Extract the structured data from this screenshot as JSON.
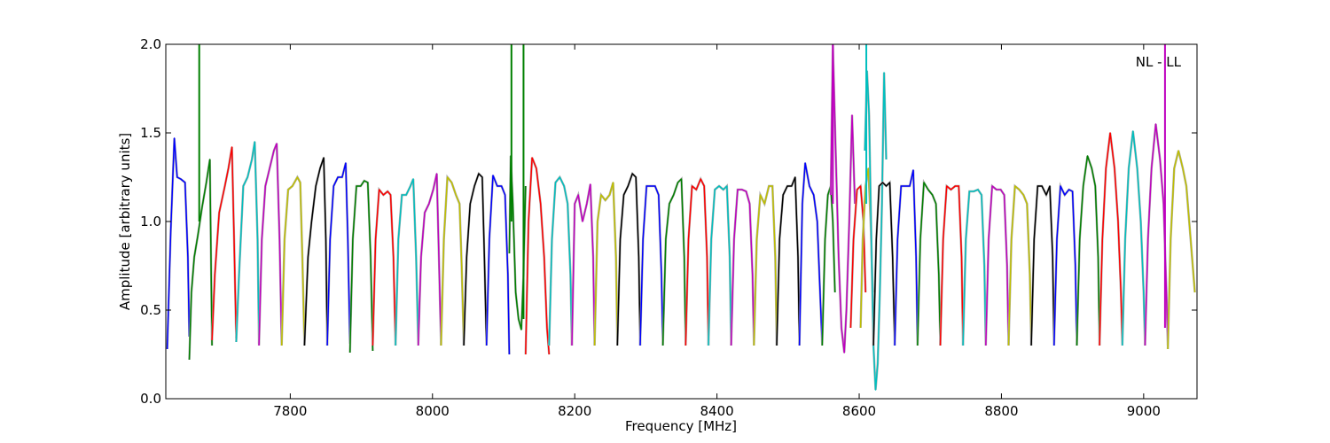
{
  "chart_data": {
    "type": "line",
    "annotation": "NL - LL",
    "xlabel": "Frequency [MHz]",
    "ylabel": "Amplitude [arbitrary units]",
    "xlim": [
      7625,
      9075
    ],
    "ylim": [
      0.0,
      2.0
    ],
    "xticks": [
      7800,
      8000,
      8200,
      8400,
      8600,
      8800,
      9000
    ],
    "xtick_labels": [
      "7800",
      "8000",
      "8200",
      "8400",
      "8600",
      "8800",
      "9000"
    ],
    "yticks": [
      0.0,
      0.5,
      1.0,
      1.5,
      2.0
    ],
    "ytick_labels": [
      "0.0",
      "0.5",
      "1.0",
      "1.5",
      "2.0"
    ],
    "grid": false,
    "color_cycle": [
      "#0000ff",
      "#008000",
      "#ff0000",
      "#00bfbf",
      "#bf00bf",
      "#bfbf00",
      "#000000"
    ],
    "series": [
      {
        "color": "#0000ff",
        "x": [
          7627,
          7632,
          7637,
          7641,
          7646,
          7652,
          7656,
          7658
        ],
        "y": [
          0.28,
          0.95,
          1.47,
          1.25,
          1.24,
          1.22,
          0.8,
          0.35
        ]
      },
      {
        "color": "#008000",
        "x": [
          7658,
          7661,
          7665,
          7670,
          7676,
          7682,
          7687,
          7690
        ],
        "y": [
          0.22,
          0.6,
          0.8,
          0.92,
          1.08,
          1.22,
          1.35,
          0.3
        ]
      },
      {
        "color": "#ff0000",
        "x": [
          7690,
          7694,
          7700,
          7708,
          7713,
          7718,
          7721,
          7724
        ],
        "y": [
          0.33,
          0.7,
          1.05,
          1.2,
          1.3,
          1.42,
          0.9,
          0.34
        ]
      },
      {
        "color": "#00bfbf",
        "x": [
          7724,
          7728,
          7734,
          7740,
          7746,
          7750,
          7754,
          7756
        ],
        "y": [
          0.32,
          0.7,
          1.2,
          1.25,
          1.35,
          1.45,
          0.9,
          0.31
        ]
      },
      {
        "color": "#bf00bf",
        "x": [
          7756,
          7760,
          7765,
          7771,
          7777,
          7781,
          7785,
          7788
        ],
        "y": [
          0.3,
          0.9,
          1.2,
          1.3,
          1.4,
          1.44,
          0.9,
          0.3
        ]
      },
      {
        "color": "#bfbf00",
        "x": [
          7788,
          7792,
          7797,
          7803,
          7810,
          7814,
          7817,
          7820
        ],
        "y": [
          0.3,
          0.9,
          1.18,
          1.2,
          1.25,
          1.22,
          0.8,
          0.3
        ]
      },
      {
        "color": "#000000",
        "x": [
          7820,
          7825,
          7830,
          7836,
          7842,
          7847,
          7850,
          7852
        ],
        "y": [
          0.3,
          0.8,
          1.0,
          1.2,
          1.3,
          1.36,
          0.9,
          0.3
        ]
      },
      {
        "color": "#0000ff",
        "x": [
          7852,
          7856,
          7861,
          7867,
          7873,
          7878,
          7881,
          7884
        ],
        "y": [
          0.3,
          0.9,
          1.2,
          1.25,
          1.25,
          1.33,
          0.9,
          0.31
        ]
      },
      {
        "color": "#008000",
        "x": [
          7884,
          7888,
          7893,
          7899,
          7904,
          7909,
          7913,
          7916
        ],
        "y": [
          0.26,
          0.9,
          1.2,
          1.2,
          1.23,
          1.22,
          0.8,
          0.27
        ]
      },
      {
        "color": "#ff0000",
        "x": [
          7916,
          7920,
          7925,
          7931,
          7937,
          7941,
          7945,
          7948
        ],
        "y": [
          0.3,
          0.9,
          1.18,
          1.15,
          1.17,
          1.15,
          0.8,
          0.3
        ]
      },
      {
        "color": "#00bfbf",
        "x": [
          7948,
          7952,
          7957,
          7963,
          7969,
          7973,
          7977,
          7980
        ],
        "y": [
          0.3,
          0.9,
          1.15,
          1.15,
          1.2,
          1.24,
          0.8,
          0.31
        ]
      },
      {
        "color": "#bf00bf",
        "x": [
          7980,
          7984,
          7989,
          7995,
          8001,
          8006,
          8009,
          8012
        ],
        "y": [
          0.3,
          0.8,
          1.05,
          1.1,
          1.18,
          1.27,
          0.8,
          0.3
        ]
      },
      {
        "color": "#bfbf00",
        "x": [
          8012,
          8016,
          8021,
          8027,
          8033,
          8038,
          8041,
          8044
        ],
        "y": [
          0.3,
          0.9,
          1.25,
          1.22,
          1.15,
          1.1,
          0.75,
          0.3
        ]
      },
      {
        "color": "#000000",
        "x": [
          8044,
          8048,
          8053,
          8059,
          8065,
          8070,
          8073,
          8076
        ],
        "y": [
          0.3,
          0.8,
          1.1,
          1.2,
          1.27,
          1.25,
          0.8,
          0.3
        ]
      },
      {
        "color": "#0000ff",
        "x": [
          8076,
          8080,
          8085,
          8091,
          8097,
          8102,
          8106,
          8108
        ],
        "y": [
          0.3,
          0.9,
          1.26,
          1.2,
          1.2,
          1.15,
          0.7,
          0.25
        ]
      },
      {
        "color": "#008000",
        "x": [
          8108,
          8110,
          8113,
          8117,
          8121,
          8125,
          8128,
          8131
        ],
        "y": [
          0.82,
          1.37,
          1.1,
          0.6,
          0.45,
          0.39,
          0.7,
          1.2
        ]
      },
      {
        "color": "#ff0000",
        "x": [
          8131,
          8135,
          8140,
          8146,
          8152,
          8157,
          8161,
          8164
        ],
        "y": [
          0.25,
          1.0,
          1.36,
          1.3,
          1.1,
          0.8,
          0.4,
          0.25
        ]
      },
      {
        "color": "#00bfbf",
        "x": [
          8164,
          8168,
          8173,
          8179,
          8185,
          8190,
          8194,
          8196
        ],
        "y": [
          0.3,
          0.9,
          1.22,
          1.25,
          1.2,
          1.1,
          0.7,
          0.3
        ]
      },
      {
        "color": "#bf00bf",
        "x": [
          8196,
          8200,
          8205,
          8211,
          8217,
          8222,
          8226,
          8228
        ],
        "y": [
          0.3,
          1.1,
          1.15,
          1.0,
          1.1,
          1.21,
          0.8,
          0.3
        ]
      },
      {
        "color": "#bfbf00",
        "x": [
          8228,
          8232,
          8237,
          8243,
          8249,
          8254,
          8258,
          8260
        ],
        "y": [
          0.3,
          1.0,
          1.15,
          1.12,
          1.15,
          1.22,
          0.8,
          0.3
        ]
      },
      {
        "color": "#000000",
        "x": [
          8260,
          8264,
          8269,
          8275,
          8281,
          8286,
          8290,
          8292
        ],
        "y": [
          0.3,
          0.9,
          1.15,
          1.2,
          1.27,
          1.25,
          0.8,
          0.3
        ]
      },
      {
        "color": "#0000ff",
        "x": [
          8292,
          8296,
          8301,
          8307,
          8313,
          8318,
          8322,
          8324
        ],
        "y": [
          0.3,
          0.9,
          1.2,
          1.2,
          1.2,
          1.15,
          0.7,
          0.3
        ]
      },
      {
        "color": "#008000",
        "x": [
          8324,
          8328,
          8333,
          8339,
          8345,
          8350,
          8354,
          8356
        ],
        "y": [
          0.3,
          0.9,
          1.1,
          1.15,
          1.22,
          1.24,
          0.8,
          0.3
        ]
      },
      {
        "color": "#ff0000",
        "x": [
          8356,
          8360,
          8365,
          8371,
          8377,
          8382,
          8386,
          8388
        ],
        "y": [
          0.3,
          0.9,
          1.2,
          1.18,
          1.24,
          1.2,
          0.8,
          0.3
        ]
      },
      {
        "color": "#00bfbf",
        "x": [
          8388,
          8392,
          8397,
          8403,
          8409,
          8414,
          8418,
          8420
        ],
        "y": [
          0.3,
          0.9,
          1.18,
          1.2,
          1.18,
          1.2,
          0.8,
          0.3
        ]
      },
      {
        "color": "#bf00bf",
        "x": [
          8420,
          8424,
          8429,
          8435,
          8441,
          8446,
          8450,
          8452
        ],
        "y": [
          0.3,
          0.9,
          1.18,
          1.18,
          1.17,
          1.1,
          0.7,
          0.3
        ]
      },
      {
        "color": "#bfbf00",
        "x": [
          8452,
          8456,
          8461,
          8467,
          8473,
          8478,
          8482,
          8484
        ],
        "y": [
          0.3,
          0.9,
          1.15,
          1.1,
          1.2,
          1.2,
          0.8,
          0.3
        ]
      },
      {
        "color": "#000000",
        "x": [
          8484,
          8488,
          8493,
          8499,
          8505,
          8510,
          8514,
          8516
        ],
        "y": [
          0.3,
          0.9,
          1.15,
          1.2,
          1.2,
          1.25,
          0.8,
          0.3
        ]
      },
      {
        "color": "#0000ff",
        "x": [
          8516,
          8520,
          8524,
          8530,
          8536,
          8541,
          8545,
          8548
        ],
        "y": [
          0.3,
          1.1,
          1.33,
          1.2,
          1.15,
          1.0,
          0.6,
          0.3
        ]
      },
      {
        "color": "#008000",
        "x": [
          8548,
          8552,
          8556,
          8560,
          8563,
          8566
        ],
        "y": [
          0.3,
          0.9,
          1.15,
          1.2,
          1.0,
          0.6
        ]
      },
      {
        "color": "#bf00bf",
        "x": [
          8560,
          8563,
          8567,
          8571,
          8575,
          8579,
          8582,
          8586,
          8590,
          8594
        ],
        "y": [
          1.15,
          2.0,
          1.4,
          0.8,
          0.4,
          0.26,
          0.5,
          1.0,
          1.6,
          1.1
        ]
      },
      {
        "color": "#ff0000",
        "x": [
          8588,
          8592,
          8597,
          8602,
          8606,
          8609
        ],
        "y": [
          0.4,
          0.9,
          1.18,
          1.2,
          1.0,
          0.6
        ]
      },
      {
        "color": "#bfbf00",
        "x": [
          8602,
          8605,
          8609,
          8613,
          8616,
          8619
        ],
        "y": [
          0.4,
          0.9,
          1.2,
          1.3,
          1.0,
          0.6
        ]
      },
      {
        "color": "#00bfbf",
        "x": [
          8608,
          8611,
          8614,
          8617,
          8620,
          8623,
          8626,
          8629,
          8632,
          8635,
          8638
        ],
        "y": [
          1.4,
          1.85,
          1.6,
          0.9,
          0.3,
          0.05,
          0.2,
          0.6,
          1.1,
          1.84,
          1.35
        ]
      },
      {
        "color": "#000000",
        "x": [
          8620,
          8624,
          8628,
          8633,
          8638,
          8643,
          8647,
          8650
        ],
        "y": [
          0.3,
          0.9,
          1.2,
          1.22,
          1.2,
          1.22,
          0.8,
          0.3
        ]
      },
      {
        "color": "#0000ff",
        "x": [
          8650,
          8654,
          8659,
          8665,
          8671,
          8676,
          8680,
          8682
        ],
        "y": [
          0.3,
          0.9,
          1.2,
          1.2,
          1.2,
          1.29,
          0.8,
          0.3
        ]
      },
      {
        "color": "#008000",
        "x": [
          8682,
          8686,
          8691,
          8697,
          8703,
          8708,
          8712,
          8714
        ],
        "y": [
          0.3,
          0.9,
          1.22,
          1.18,
          1.15,
          1.1,
          0.7,
          0.3
        ]
      },
      {
        "color": "#ff0000",
        "x": [
          8714,
          8718,
          8723,
          8729,
          8735,
          8740,
          8744,
          8746
        ],
        "y": [
          0.3,
          0.9,
          1.2,
          1.18,
          1.2,
          1.2,
          0.8,
          0.3
        ]
      },
      {
        "color": "#00bfbf",
        "x": [
          8746,
          8750,
          8755,
          8761,
          8767,
          8772,
          8776,
          8778
        ],
        "y": [
          0.3,
          0.9,
          1.17,
          1.17,
          1.18,
          1.15,
          0.75,
          0.3
        ]
      },
      {
        "color": "#bf00bf",
        "x": [
          8778,
          8782,
          8787,
          8793,
          8799,
          8804,
          8808,
          8810
        ],
        "y": [
          0.3,
          0.9,
          1.2,
          1.18,
          1.18,
          1.15,
          0.75,
          0.3
        ]
      },
      {
        "color": "#bfbf00",
        "x": [
          8810,
          8814,
          8819,
          8825,
          8831,
          8836,
          8840,
          8842
        ],
        "y": [
          0.3,
          0.9,
          1.2,
          1.18,
          1.15,
          1.1,
          0.7,
          0.3
        ]
      },
      {
        "color": "#000000",
        "x": [
          8842,
          8846,
          8851,
          8857,
          8863,
          8868,
          8872,
          8874
        ],
        "y": [
          0.3,
          0.9,
          1.2,
          1.2,
          1.15,
          1.2,
          0.8,
          0.3
        ]
      },
      {
        "color": "#0000ff",
        "x": [
          8874,
          8878,
          8883,
          8889,
          8895,
          8900,
          8904,
          8906
        ],
        "y": [
          0.3,
          0.9,
          1.2,
          1.15,
          1.18,
          1.17,
          0.75,
          0.3
        ]
      },
      {
        "color": "#008000",
        "x": [
          8906,
          8910,
          8915,
          8921,
          8927,
          8932,
          8936,
          8938
        ],
        "y": [
          0.3,
          0.9,
          1.2,
          1.37,
          1.3,
          1.2,
          0.8,
          0.3
        ]
      },
      {
        "color": "#ff0000",
        "x": [
          8938,
          8942,
          8947,
          8953,
          8959,
          8964,
          8968,
          8970
        ],
        "y": [
          0.3,
          0.9,
          1.3,
          1.5,
          1.3,
          1.0,
          0.6,
          0.3
        ]
      },
      {
        "color": "#00bfbf",
        "x": [
          8970,
          8974,
          8979,
          8985,
          8991,
          8996,
          9000,
          9002
        ],
        "y": [
          0.3,
          0.9,
          1.3,
          1.51,
          1.3,
          1.0,
          0.6,
          0.3
        ]
      },
      {
        "color": "#bf00bf",
        "x": [
          9002,
          9006,
          9011,
          9017,
          9023,
          9028,
          9032,
          9034
        ],
        "y": [
          0.3,
          0.9,
          1.3,
          1.55,
          1.35,
          1.1,
          0.6,
          0.3
        ]
      },
      {
        "color": "#bfbf00",
        "x": [
          9034,
          9038,
          9043,
          9049,
          9055,
          9060,
          9066,
          9072
        ],
        "y": [
          0.28,
          0.9,
          1.3,
          1.4,
          1.3,
          1.2,
          0.9,
          0.6
        ]
      }
    ],
    "spikes": [
      {
        "x": 7672,
        "y0": 1.0,
        "y1": 2.0,
        "color": "#008000"
      },
      {
        "x": 8111,
        "y0": 1.0,
        "y1": 2.0,
        "color": "#008000"
      },
      {
        "x": 8128,
        "y0": 0.45,
        "y1": 2.0,
        "color": "#008000"
      },
      {
        "x": 8563,
        "y0": 1.1,
        "y1": 2.0,
        "color": "#bf00bf"
      },
      {
        "x": 8610,
        "y0": 1.1,
        "y1": 2.0,
        "color": "#00bfbf"
      },
      {
        "x": 9030,
        "y0": 0.4,
        "y1": 2.0,
        "color": "#bf00bf"
      }
    ]
  }
}
